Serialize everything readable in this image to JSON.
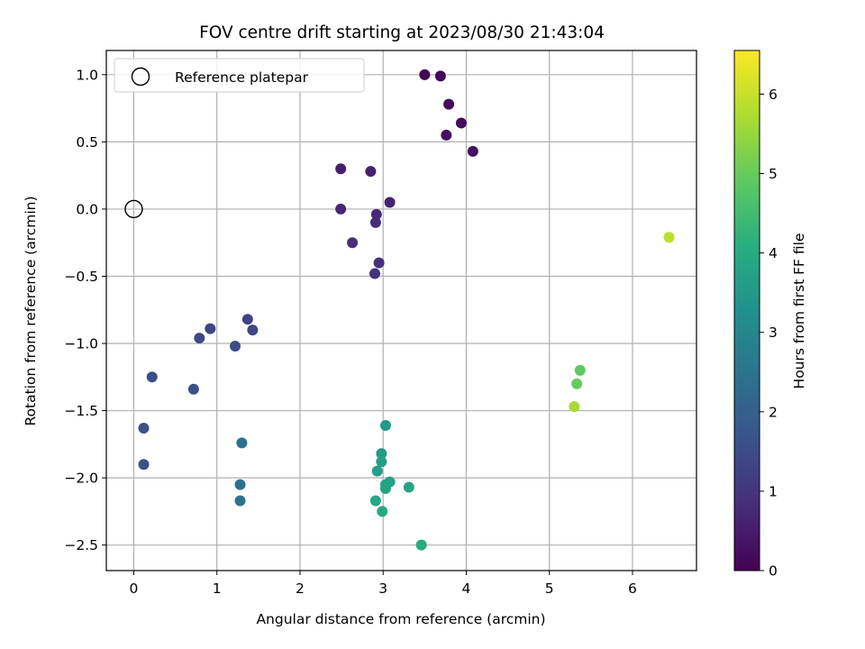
{
  "chart_data": {
    "type": "scatter",
    "title": "FOV centre drift starting at 2023/08/30 21:43:04",
    "xlabel": "Angular distance from reference (arcmin)",
    "ylabel": "Rotation from reference (arcmin)",
    "xlim": [
      -0.33,
      6.77
    ],
    "ylim": [
      -2.69,
      1.18
    ],
    "xticks": [
      0,
      1,
      2,
      3,
      4,
      5,
      6
    ],
    "yticks": [
      1.0,
      0.5,
      0.0,
      -0.5,
      -1.0,
      -1.5,
      -2.0,
      -2.5
    ],
    "ytick_labels": [
      "1.0",
      "0.5",
      "0.0",
      "−0.5",
      "−1.0",
      "−1.5",
      "−2.0",
      "−2.5"
    ],
    "grid": true,
    "legend": {
      "placement": "top-left",
      "entries": [
        "Reference platepar"
      ]
    },
    "reference_point": {
      "x": 0.0,
      "y": 0.0
    },
    "colorbar": {
      "label": "Hours from first FF file",
      "range": [
        0,
        6.55
      ],
      "ticks": [
        0,
        1,
        2,
        3,
        4,
        5,
        6
      ],
      "colormap": "viridis"
    },
    "points": [
      {
        "x": 3.5,
        "y": 1.0,
        "c": 0.05
      },
      {
        "x": 3.69,
        "y": 0.99,
        "c": 0.1
      },
      {
        "x": 3.79,
        "y": 0.78,
        "c": 0.15
      },
      {
        "x": 3.94,
        "y": 0.64,
        "c": 0.2
      },
      {
        "x": 3.76,
        "y": 0.55,
        "c": 0.25
      },
      {
        "x": 4.08,
        "y": 0.43,
        "c": 0.3
      },
      {
        "x": 2.49,
        "y": 0.3,
        "c": 0.55
      },
      {
        "x": 2.85,
        "y": 0.28,
        "c": 0.6
      },
      {
        "x": 3.08,
        "y": 0.05,
        "c": 0.65
      },
      {
        "x": 2.49,
        "y": 0.0,
        "c": 0.7
      },
      {
        "x": 2.92,
        "y": -0.04,
        "c": 0.75
      },
      {
        "x": 2.91,
        "y": -0.1,
        "c": 0.8
      },
      {
        "x": 2.63,
        "y": -0.25,
        "c": 0.85
      },
      {
        "x": 2.95,
        "y": -0.4,
        "c": 0.9
      },
      {
        "x": 2.9,
        "y": -0.48,
        "c": 0.95
      },
      {
        "x": 1.37,
        "y": -0.82,
        "c": 1.3
      },
      {
        "x": 0.92,
        "y": -0.89,
        "c": 1.35
      },
      {
        "x": 1.43,
        "y": -0.9,
        "c": 1.4
      },
      {
        "x": 0.79,
        "y": -0.96,
        "c": 1.45
      },
      {
        "x": 1.22,
        "y": -1.02,
        "c": 1.5
      },
      {
        "x": 0.22,
        "y": -1.25,
        "c": 1.55
      },
      {
        "x": 0.72,
        "y": -1.34,
        "c": 1.6
      },
      {
        "x": 0.12,
        "y": -1.63,
        "c": 1.65
      },
      {
        "x": 0.12,
        "y": -1.9,
        "c": 1.7
      },
      {
        "x": 1.3,
        "y": -1.74,
        "c": 2.4
      },
      {
        "x": 1.28,
        "y": -2.05,
        "c": 2.45
      },
      {
        "x": 1.28,
        "y": -2.17,
        "c": 2.5
      },
      {
        "x": 3.03,
        "y": -1.61,
        "c": 3.5
      },
      {
        "x": 2.98,
        "y": -1.82,
        "c": 3.55
      },
      {
        "x": 2.98,
        "y": -1.88,
        "c": 3.6
      },
      {
        "x": 2.93,
        "y": -1.95,
        "c": 3.65
      },
      {
        "x": 3.08,
        "y": -2.03,
        "c": 3.7
      },
      {
        "x": 3.03,
        "y": -2.05,
        "c": 3.75
      },
      {
        "x": 3.03,
        "y": -2.08,
        "c": 3.8
      },
      {
        "x": 3.31,
        "y": -2.07,
        "c": 3.85
      },
      {
        "x": 2.91,
        "y": -2.17,
        "c": 3.9
      },
      {
        "x": 2.99,
        "y": -2.25,
        "c": 3.95
      },
      {
        "x": 3.46,
        "y": -2.5,
        "c": 4.0
      },
      {
        "x": 5.37,
        "y": -1.2,
        "c": 4.9
      },
      {
        "x": 5.33,
        "y": -1.3,
        "c": 5.0
      },
      {
        "x": 5.3,
        "y": -1.47,
        "c": 5.7
      },
      {
        "x": 6.44,
        "y": -0.21,
        "c": 5.9
      }
    ]
  }
}
